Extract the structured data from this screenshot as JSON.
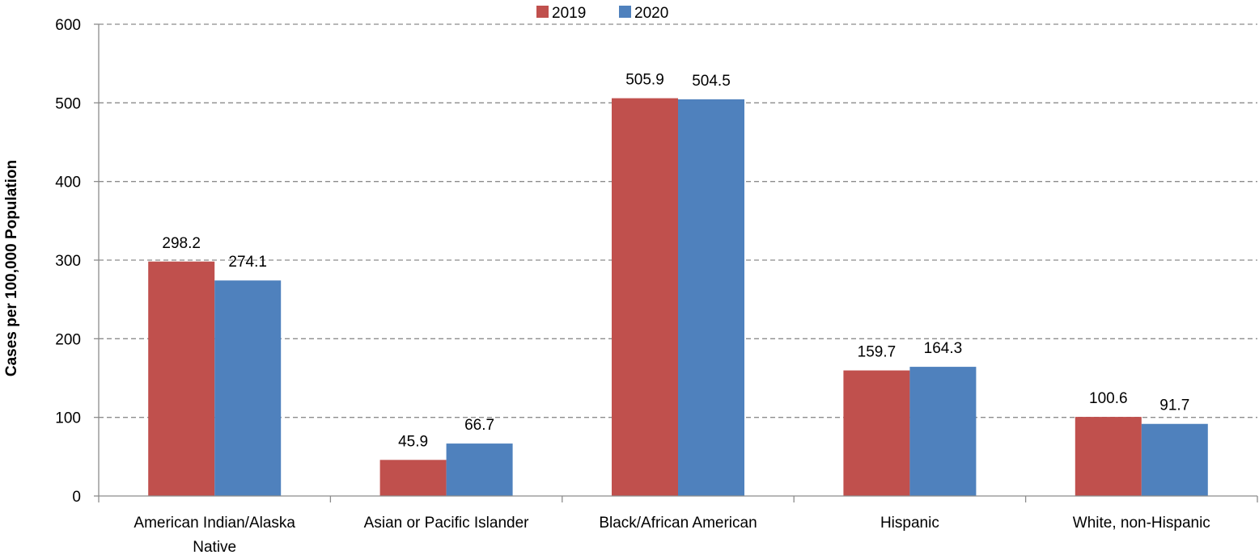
{
  "chart_data": {
    "type": "bar",
    "title": "",
    "xlabel": "",
    "ylabel": "Cases per 100,000 Population",
    "ylim": [
      0,
      600
    ],
    "yticks": [
      0,
      100,
      200,
      300,
      400,
      500,
      600
    ],
    "grid": true,
    "legend_position": "top-center",
    "categories": [
      [
        "American Indian/Alaska",
        "Native"
      ],
      [
        "Asian or Pacific Islander"
      ],
      [
        "Black/African American"
      ],
      [
        "Hispanic"
      ],
      [
        "White, non-Hispanic"
      ]
    ],
    "series": [
      {
        "name": "2019",
        "color": "#c0504d",
        "values": [
          298.2,
          45.9,
          505.9,
          159.7,
          100.6
        ],
        "labels": [
          "298.2",
          "45.9",
          "505.9",
          "159.7",
          "100.6"
        ]
      },
      {
        "name": "2020",
        "color": "#4f81bd",
        "values": [
          274.1,
          66.7,
          504.5,
          164.3,
          91.7
        ],
        "labels": [
          "274.1",
          "66.7",
          "504.5",
          "164.3",
          "91.7"
        ]
      }
    ]
  }
}
